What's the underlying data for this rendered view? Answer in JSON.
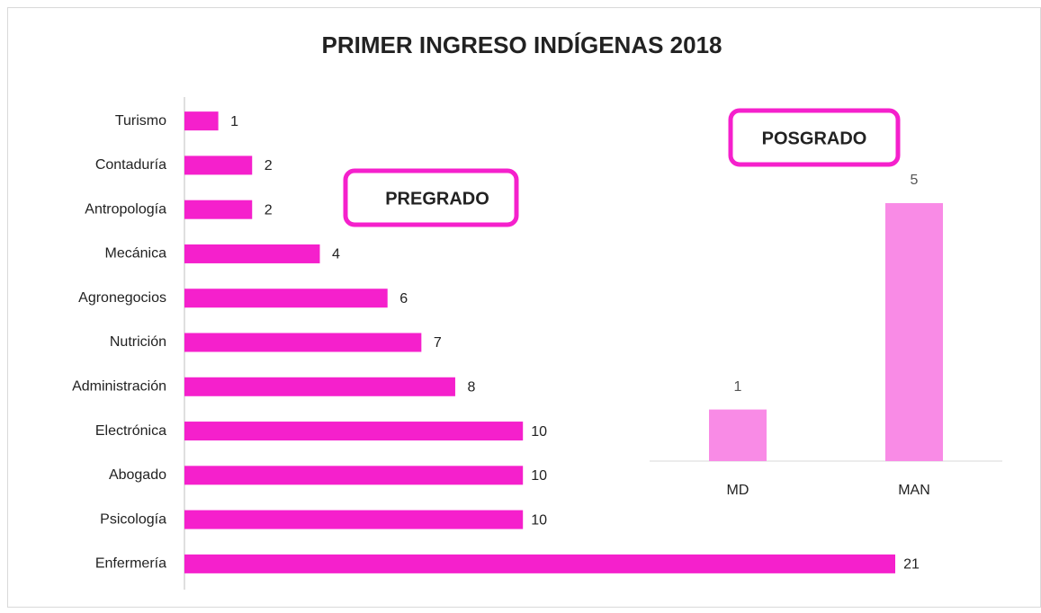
{
  "title": "PRIMER INGRESO INDÍGENAS 2018",
  "chart_data": [
    {
      "type": "hbar",
      "annotation": "PREGRADO",
      "categories": [
        "Turismo",
        "Contaduría",
        "Antropología",
        "Mecánica",
        "Agronegocios",
        "Nutrición",
        "Administración",
        "Electrónica",
        "Abogado",
        "Psicología",
        "Enfermería"
      ],
      "values": [
        1,
        2,
        2,
        4,
        6,
        7,
        8,
        10,
        10,
        10,
        21
      ],
      "color": "#f520cc",
      "xlim": [
        0,
        21
      ]
    },
    {
      "type": "bar",
      "annotation": "POSGRADO",
      "categories": [
        "MD",
        "MAN"
      ],
      "values": [
        1,
        5
      ],
      "color": "#f98be6",
      "ylim": [
        0,
        5
      ]
    }
  ]
}
